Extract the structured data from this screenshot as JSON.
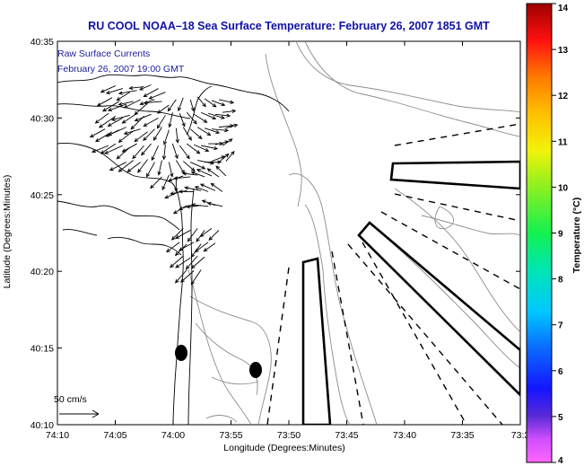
{
  "title": "RU COOL  NOAA–18  Sea Surface Temperature:  February 26, 2007 1851 GMT",
  "overlay": {
    "line1": "Raw Surface Currents",
    "line2": "February 26, 2007 19:00 GMT"
  },
  "scale": {
    "label": "50 cm/s"
  },
  "axes": {
    "xlabel": "Longitude (Degrees:Minutes)",
    "ylabel": "Latitude (Degrees:Minutes)",
    "xticks": [
      "74:10",
      "74:05",
      "74:00",
      "73:55",
      "73:50",
      "73:45",
      "73:40",
      "73:35",
      "73:3"
    ],
    "yticks": [
      "40:35",
      "40:30",
      "40:25",
      "40:20",
      "40:15",
      "40:10"
    ]
  },
  "colorbar": {
    "label": "Temperature (°C)",
    "min": 4,
    "max": 14,
    "ticks": [
      "14",
      "13",
      "12",
      "11",
      "10",
      "9",
      "8",
      "7",
      "6",
      "5",
      "4"
    ]
  },
  "colors": {
    "title": "#1010a8",
    "overlay_text": "#1b1b9a",
    "coastline": "#000000",
    "contours": "#8c8c8c"
  },
  "map": {
    "xlim_deg": [
      -74.1667,
      -73.5167
    ],
    "ylim_deg": [
      40.1667,
      40.5833
    ],
    "vectors": [
      {
        "lon": -74.085,
        "lat": 40.535,
        "u": -18,
        "v": -8
      },
      {
        "lon": -74.075,
        "lat": 40.532,
        "u": -20,
        "v": -6
      },
      {
        "lon": -74.065,
        "lat": 40.528,
        "u": -16,
        "v": -10
      },
      {
        "lon": -74.055,
        "lat": 40.53,
        "u": -22,
        "v": -4
      },
      {
        "lon": -74.045,
        "lat": 40.534,
        "u": -18,
        "v": -2
      },
      {
        "lon": -74.035,
        "lat": 40.536,
        "u": -14,
        "v": -6
      },
      {
        "lon": -74.025,
        "lat": 40.532,
        "u": -18,
        "v": -10
      },
      {
        "lon": -74.015,
        "lat": 40.528,
        "u": -20,
        "v": -8
      },
      {
        "lon": -74.09,
        "lat": 40.522,
        "u": -18,
        "v": -10
      },
      {
        "lon": -74.08,
        "lat": 40.518,
        "u": -20,
        "v": -12
      },
      {
        "lon": -74.07,
        "lat": 40.515,
        "u": -22,
        "v": -8
      },
      {
        "lon": -74.06,
        "lat": 40.518,
        "u": -18,
        "v": -4
      },
      {
        "lon": -74.05,
        "lat": 40.52,
        "u": -20,
        "v": -10
      },
      {
        "lon": -74.04,
        "lat": 40.516,
        "u": -16,
        "v": -14
      },
      {
        "lon": -74.03,
        "lat": 40.52,
        "u": -18,
        "v": -6
      },
      {
        "lon": -74.02,
        "lat": 40.518,
        "u": -22,
        "v": -2
      },
      {
        "lon": -74.01,
        "lat": 40.514,
        "u": -14,
        "v": -10
      },
      {
        "lon": -74.0,
        "lat": 40.52,
        "u": -10,
        "v": -14
      },
      {
        "lon": -73.99,
        "lat": 40.522,
        "u": -6,
        "v": -16
      },
      {
        "lon": -73.98,
        "lat": 40.52,
        "u": 4,
        "v": -14
      },
      {
        "lon": -73.97,
        "lat": 40.523,
        "u": 10,
        "v": -12
      },
      {
        "lon": -73.96,
        "lat": 40.521,
        "u": 14,
        "v": -10
      },
      {
        "lon": -73.95,
        "lat": 40.519,
        "u": 16,
        "v": -6
      },
      {
        "lon": -73.94,
        "lat": 40.52,
        "u": 18,
        "v": -4
      },
      {
        "lon": -74.095,
        "lat": 40.505,
        "u": -16,
        "v": -12
      },
      {
        "lon": -74.085,
        "lat": 40.502,
        "u": -20,
        "v": -14
      },
      {
        "lon": -74.075,
        "lat": 40.5,
        "u": -18,
        "v": -10
      },
      {
        "lon": -74.065,
        "lat": 40.503,
        "u": -22,
        "v": -6
      },
      {
        "lon": -74.055,
        "lat": 40.505,
        "u": -18,
        "v": -12
      },
      {
        "lon": -74.045,
        "lat": 40.502,
        "u": -16,
        "v": -16
      },
      {
        "lon": -74.035,
        "lat": 40.504,
        "u": -20,
        "v": -8
      },
      {
        "lon": -74.025,
        "lat": 40.5,
        "u": -18,
        "v": -10
      },
      {
        "lon": -74.015,
        "lat": 40.503,
        "u": -10,
        "v": -16
      },
      {
        "lon": -74.005,
        "lat": 40.506,
        "u": -4,
        "v": -18
      },
      {
        "lon": -73.995,
        "lat": 40.505,
        "u": 6,
        "v": -16
      },
      {
        "lon": -73.985,
        "lat": 40.506,
        "u": 12,
        "v": -14
      },
      {
        "lon": -73.975,
        "lat": 40.504,
        "u": 16,
        "v": -10
      },
      {
        "lon": -73.965,
        "lat": 40.506,
        "u": 18,
        "v": -8
      },
      {
        "lon": -73.955,
        "lat": 40.505,
        "u": 20,
        "v": -6
      },
      {
        "lon": -73.945,
        "lat": 40.504,
        "u": 18,
        "v": -2
      },
      {
        "lon": -73.935,
        "lat": 40.506,
        "u": 16,
        "v": 2
      },
      {
        "lon": -74.1,
        "lat": 40.488,
        "u": -18,
        "v": -10
      },
      {
        "lon": -74.09,
        "lat": 40.485,
        "u": -20,
        "v": -12
      },
      {
        "lon": -74.08,
        "lat": 40.487,
        "u": -16,
        "v": -8
      },
      {
        "lon": -74.07,
        "lat": 40.49,
        "u": -22,
        "v": -10
      },
      {
        "lon": -74.06,
        "lat": 40.486,
        "u": -18,
        "v": -14
      },
      {
        "lon": -74.05,
        "lat": 40.488,
        "u": -20,
        "v": -6
      },
      {
        "lon": -74.04,
        "lat": 40.485,
        "u": -16,
        "v": -12
      },
      {
        "lon": -74.03,
        "lat": 40.488,
        "u": -14,
        "v": -14
      },
      {
        "lon": -74.02,
        "lat": 40.49,
        "u": -10,
        "v": -16
      },
      {
        "lon": -74.01,
        "lat": 40.487,
        "u": -6,
        "v": -18
      },
      {
        "lon": -74.0,
        "lat": 40.489,
        "u": 2,
        "v": -18
      },
      {
        "lon": -73.99,
        "lat": 40.49,
        "u": 10,
        "v": -16
      },
      {
        "lon": -73.98,
        "lat": 40.488,
        "u": 14,
        "v": -12
      },
      {
        "lon": -73.97,
        "lat": 40.49,
        "u": 16,
        "v": -10
      },
      {
        "lon": -73.96,
        "lat": 40.489,
        "u": 18,
        "v": -6
      },
      {
        "lon": -73.95,
        "lat": 40.488,
        "u": 20,
        "v": -2
      },
      {
        "lon": -73.94,
        "lat": 40.49,
        "u": 18,
        "v": 2
      },
      {
        "lon": -73.93,
        "lat": 40.489,
        "u": 14,
        "v": 4
      },
      {
        "lon": -74.095,
        "lat": 40.47,
        "u": -20,
        "v": -8
      },
      {
        "lon": -74.085,
        "lat": 40.472,
        "u": -18,
        "v": -12
      },
      {
        "lon": -74.075,
        "lat": 40.47,
        "u": -22,
        "v": -10
      },
      {
        "lon": -74.065,
        "lat": 40.468,
        "u": -16,
        "v": -14
      },
      {
        "lon": -74.055,
        "lat": 40.472,
        "u": -18,
        "v": -10
      },
      {
        "lon": -74.045,
        "lat": 40.47,
        "u": -14,
        "v": -16
      },
      {
        "lon": -74.035,
        "lat": 40.472,
        "u": -12,
        "v": -14
      },
      {
        "lon": -74.025,
        "lat": 40.47,
        "u": -8,
        "v": -18
      },
      {
        "lon": -74.015,
        "lat": 40.471,
        "u": -2,
        "v": -18
      },
      {
        "lon": -74.005,
        "lat": 40.472,
        "u": 6,
        "v": -18
      },
      {
        "lon": -73.995,
        "lat": 40.47,
        "u": 12,
        "v": -16
      },
      {
        "lon": -73.985,
        "lat": 40.472,
        "u": 16,
        "v": -12
      },
      {
        "lon": -73.975,
        "lat": 40.471,
        "u": 18,
        "v": -8
      },
      {
        "lon": -73.965,
        "lat": 40.47,
        "u": 20,
        "v": -4
      },
      {
        "lon": -73.955,
        "lat": 40.472,
        "u": 18,
        "v": 0
      },
      {
        "lon": -73.945,
        "lat": 40.471,
        "u": 16,
        "v": 4
      },
      {
        "lon": -73.935,
        "lat": 40.47,
        "u": 12,
        "v": 8
      },
      {
        "lon": -74.07,
        "lat": 40.452,
        "u": -20,
        "v": -10
      },
      {
        "lon": -74.06,
        "lat": 40.454,
        "u": -18,
        "v": -14
      },
      {
        "lon": -74.05,
        "lat": 40.452,
        "u": -16,
        "v": -12
      },
      {
        "lon": -74.04,
        "lat": 40.455,
        "u": -12,
        "v": -16
      },
      {
        "lon": -74.03,
        "lat": 40.452,
        "u": -10,
        "v": -18
      },
      {
        "lon": -74.02,
        "lat": 40.454,
        "u": -4,
        "v": -18
      },
      {
        "lon": -74.01,
        "lat": 40.452,
        "u": 4,
        "v": -18
      },
      {
        "lon": -74.0,
        "lat": 40.454,
        "u": 10,
        "v": -16
      },
      {
        "lon": -73.99,
        "lat": 40.453,
        "u": 14,
        "v": -12
      },
      {
        "lon": -73.98,
        "lat": 40.452,
        "u": 18,
        "v": -8
      },
      {
        "lon": -73.97,
        "lat": 40.454,
        "u": 20,
        "v": -4
      },
      {
        "lon": -73.96,
        "lat": 40.452,
        "u": 20,
        "v": 0
      },
      {
        "lon": -73.95,
        "lat": 40.453,
        "u": 16,
        "v": 6
      },
      {
        "lon": -73.94,
        "lat": 40.452,
        "u": 12,
        "v": 10
      },
      {
        "lon": -73.93,
        "lat": 40.453,
        "u": 10,
        "v": 12
      },
      {
        "lon": -74.02,
        "lat": 40.436,
        "u": -14,
        "v": -14
      },
      {
        "lon": -74.01,
        "lat": 40.438,
        "u": -8,
        "v": -18
      },
      {
        "lon": -74.0,
        "lat": 40.436,
        "u": 0,
        "v": -18
      },
      {
        "lon": -73.99,
        "lat": 40.437,
        "u": -18,
        "v": -6
      },
      {
        "lon": -73.98,
        "lat": 40.436,
        "u": -20,
        "v": -2
      },
      {
        "lon": -73.97,
        "lat": 40.438,
        "u": -18,
        "v": 2
      },
      {
        "lon": -73.96,
        "lat": 40.436,
        "u": -16,
        "v": 6
      },
      {
        "lon": -73.95,
        "lat": 40.437,
        "u": -18,
        "v": 8
      },
      {
        "lon": -73.94,
        "lat": 40.436,
        "u": -14,
        "v": 10
      },
      {
        "lon": -73.93,
        "lat": 40.437,
        "u": -12,
        "v": 12
      },
      {
        "lon": -73.995,
        "lat": 40.42,
        "u": -18,
        "v": -8
      },
      {
        "lon": -73.985,
        "lat": 40.421,
        "u": -20,
        "v": -4
      },
      {
        "lon": -73.975,
        "lat": 40.42,
        "u": -18,
        "v": 0
      },
      {
        "lon": -73.965,
        "lat": 40.421,
        "u": -20,
        "v": 4
      },
      {
        "lon": -73.955,
        "lat": 40.42,
        "u": -16,
        "v": 6
      },
      {
        "lon": -73.945,
        "lat": 40.421,
        "u": -18,
        "v": 8
      },
      {
        "lon": -73.935,
        "lat": 40.42,
        "u": -14,
        "v": 10
      },
      {
        "lon": -73.985,
        "lat": 40.405,
        "u": -16,
        "v": -10
      },
      {
        "lon": -73.975,
        "lat": 40.406,
        "u": -18,
        "v": -6
      },
      {
        "lon": -73.965,
        "lat": 40.405,
        "u": -18,
        "v": -2
      },
      {
        "lon": -73.955,
        "lat": 40.404,
        "u": -20,
        "v": 2
      },
      {
        "lon": -73.945,
        "lat": 40.405,
        "u": -16,
        "v": 6
      },
      {
        "lon": -73.935,
        "lat": 40.404,
        "u": -18,
        "v": 4
      },
      {
        "lon": -73.99,
        "lat": 40.38,
        "u": -14,
        "v": -14
      },
      {
        "lon": -73.98,
        "lat": 40.378,
        "u": -18,
        "v": -10
      },
      {
        "lon": -73.97,
        "lat": 40.38,
        "u": -12,
        "v": -16
      },
      {
        "lon": -73.96,
        "lat": 40.378,
        "u": -10,
        "v": -14
      },
      {
        "lon": -73.95,
        "lat": 40.38,
        "u": -14,
        "v": -10
      },
      {
        "lon": -73.94,
        "lat": 40.378,
        "u": -12,
        "v": -12
      },
      {
        "lon": -73.995,
        "lat": 40.365,
        "u": -16,
        "v": -12
      },
      {
        "lon": -73.985,
        "lat": 40.363,
        "u": -14,
        "v": -14
      },
      {
        "lon": -73.975,
        "lat": 40.365,
        "u": -18,
        "v": -10
      },
      {
        "lon": -73.965,
        "lat": 40.363,
        "u": -12,
        "v": -16
      },
      {
        "lon": -73.955,
        "lat": 40.365,
        "u": -16,
        "v": -12
      },
      {
        "lon": -73.945,
        "lat": 40.364,
        "u": -14,
        "v": -10
      },
      {
        "lon": -73.99,
        "lat": 40.35,
        "u": -16,
        "v": -14
      },
      {
        "lon": -73.98,
        "lat": 40.348,
        "u": -18,
        "v": -12
      },
      {
        "lon": -73.97,
        "lat": 40.35,
        "u": -14,
        "v": -16
      },
      {
        "lon": -73.96,
        "lat": 40.349,
        "u": -16,
        "v": -14
      },
      {
        "lon": -73.985,
        "lat": 40.335,
        "u": -14,
        "v": -16
      },
      {
        "lon": -73.975,
        "lat": 40.334,
        "u": -16,
        "v": -14
      },
      {
        "lon": -73.965,
        "lat": 40.335,
        "u": -12,
        "v": -18
      }
    ]
  }
}
